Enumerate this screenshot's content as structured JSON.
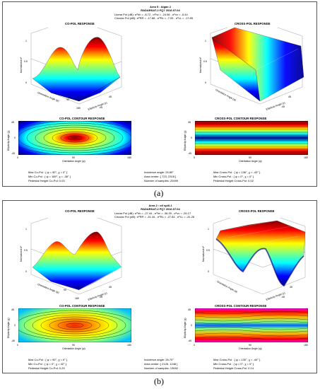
{
  "panels": [
    {
      "label": "(a)",
      "header": {
        "area": "Area 5 : Algae-1",
        "sensor": "RADARSAT-2   FQ7   2016.07.04",
        "linear_pol": "Linear Pol (dB): σ⁰hh = -8.72 ,  σ⁰hv = -24.56 ,  σ⁰vv = -5.44",
        "circular_pol": "Circular Pol (dB): σ⁰RR = -17.88 ,  σ⁰RL = -7.09 ,  σ⁰LL = -17.85"
      },
      "copol_title": "CO-POL RESPONSE",
      "crosspol_title": "CROSS-POL RESPONSE",
      "copol_contour_title": "CO-POL CONTOUR RESPONSE",
      "crosspol_contour_title": "CROSS-POL CONTOUR RESPONSE",
      "axis": {
        "z": "Normalized σ⁰",
        "x": "Orientation Angle (ψ)",
        "y": "Ellipticity Angle (χ)"
      },
      "ticks": {
        "zero": "0",
        "half": "0.5",
        "one": "1",
        "m45": "-45",
        "p45": "45",
        "p90": "90",
        "p180": "180"
      },
      "stats": {
        "max_copol": "Max Co-Pol : { ψ = 90°, χ = 0° }",
        "min_copol": "Min Co-Pol : { ψ = 169°, χ = -38° }",
        "pedestal_copol": "Pedestal Height Co-Pol: 0.03",
        "incidence": "Incidence angle: 25.89°",
        "center": "Area center: [ 723, 2318 ]",
        "samples": "Number of samples: 20499",
        "max_cross": "Max Cross-Pol : { ψ = 136°, χ = -43° }",
        "min_cross": "Min Cross-Pol : { ψ = 0°, χ = 0° }",
        "pedestal_cross": "Pedestal Height Cross-Pol: 0.02"
      }
    },
    {
      "label": "(b)",
      "header": {
        "area": "Area 2 : oil spill-1",
        "sensor": "RADARSAT-2   FQ7   2016.07.04",
        "linear_pol": "Linear Pol (dB): σ⁰hh = -27.44 ,  σ⁰hv = -36.39 ,  σ⁰vv = -26.17",
        "circular_pol": "Circular Pol (dB): σ⁰RR = -31.34 ,  σ⁰RL = -27.84 ,  σ⁰LL = -31.26"
      },
      "copol_title": "CO-POL RESPONSE",
      "crosspol_title": "CROSS-POL RESPONSE",
      "copol_contour_title": "CO-POL CONTOUR RESPONSE",
      "crosspol_contour_title": "CROSS-POL CONTOUR RESPONSE",
      "axis": {
        "z": "Normalized σ⁰",
        "x": "Orientation Angle (ψ)",
        "y": "Ellipticity Angle (χ)"
      },
      "ticks": {
        "zero": "0",
        "half": "0.5",
        "one": "1",
        "m45": "-45",
        "p45": "45",
        "p90": "90",
        "p180": "180"
      },
      "stats": {
        "max_copol": "Max Co-Pol : { ψ = 90°, χ = 0° }",
        "min_copol": "Min Co-Pol : { ψ = 0°, χ = 42° }",
        "pedestal_copol": "Pedestal Height Co-Pol: 0.29",
        "incidence": "Incidence angle: 26.70°",
        "center": "Area center: [ 2126, 1248 ]",
        "samples": "Number of samples: 13692",
        "max_cross": "Max Cross-Pol : { ψ = 130°, χ = -44° }",
        "min_cross": "Min Cross-Pol : { ψ = 0°, χ = 0° }",
        "pedestal_cross": "Pedestal Height Cross-Pol: 0.14"
      }
    }
  ],
  "colors": {
    "frame": "#555555",
    "contour_line": "#000000",
    "jet_low": "#00008f",
    "jet_high": "#800000"
  }
}
